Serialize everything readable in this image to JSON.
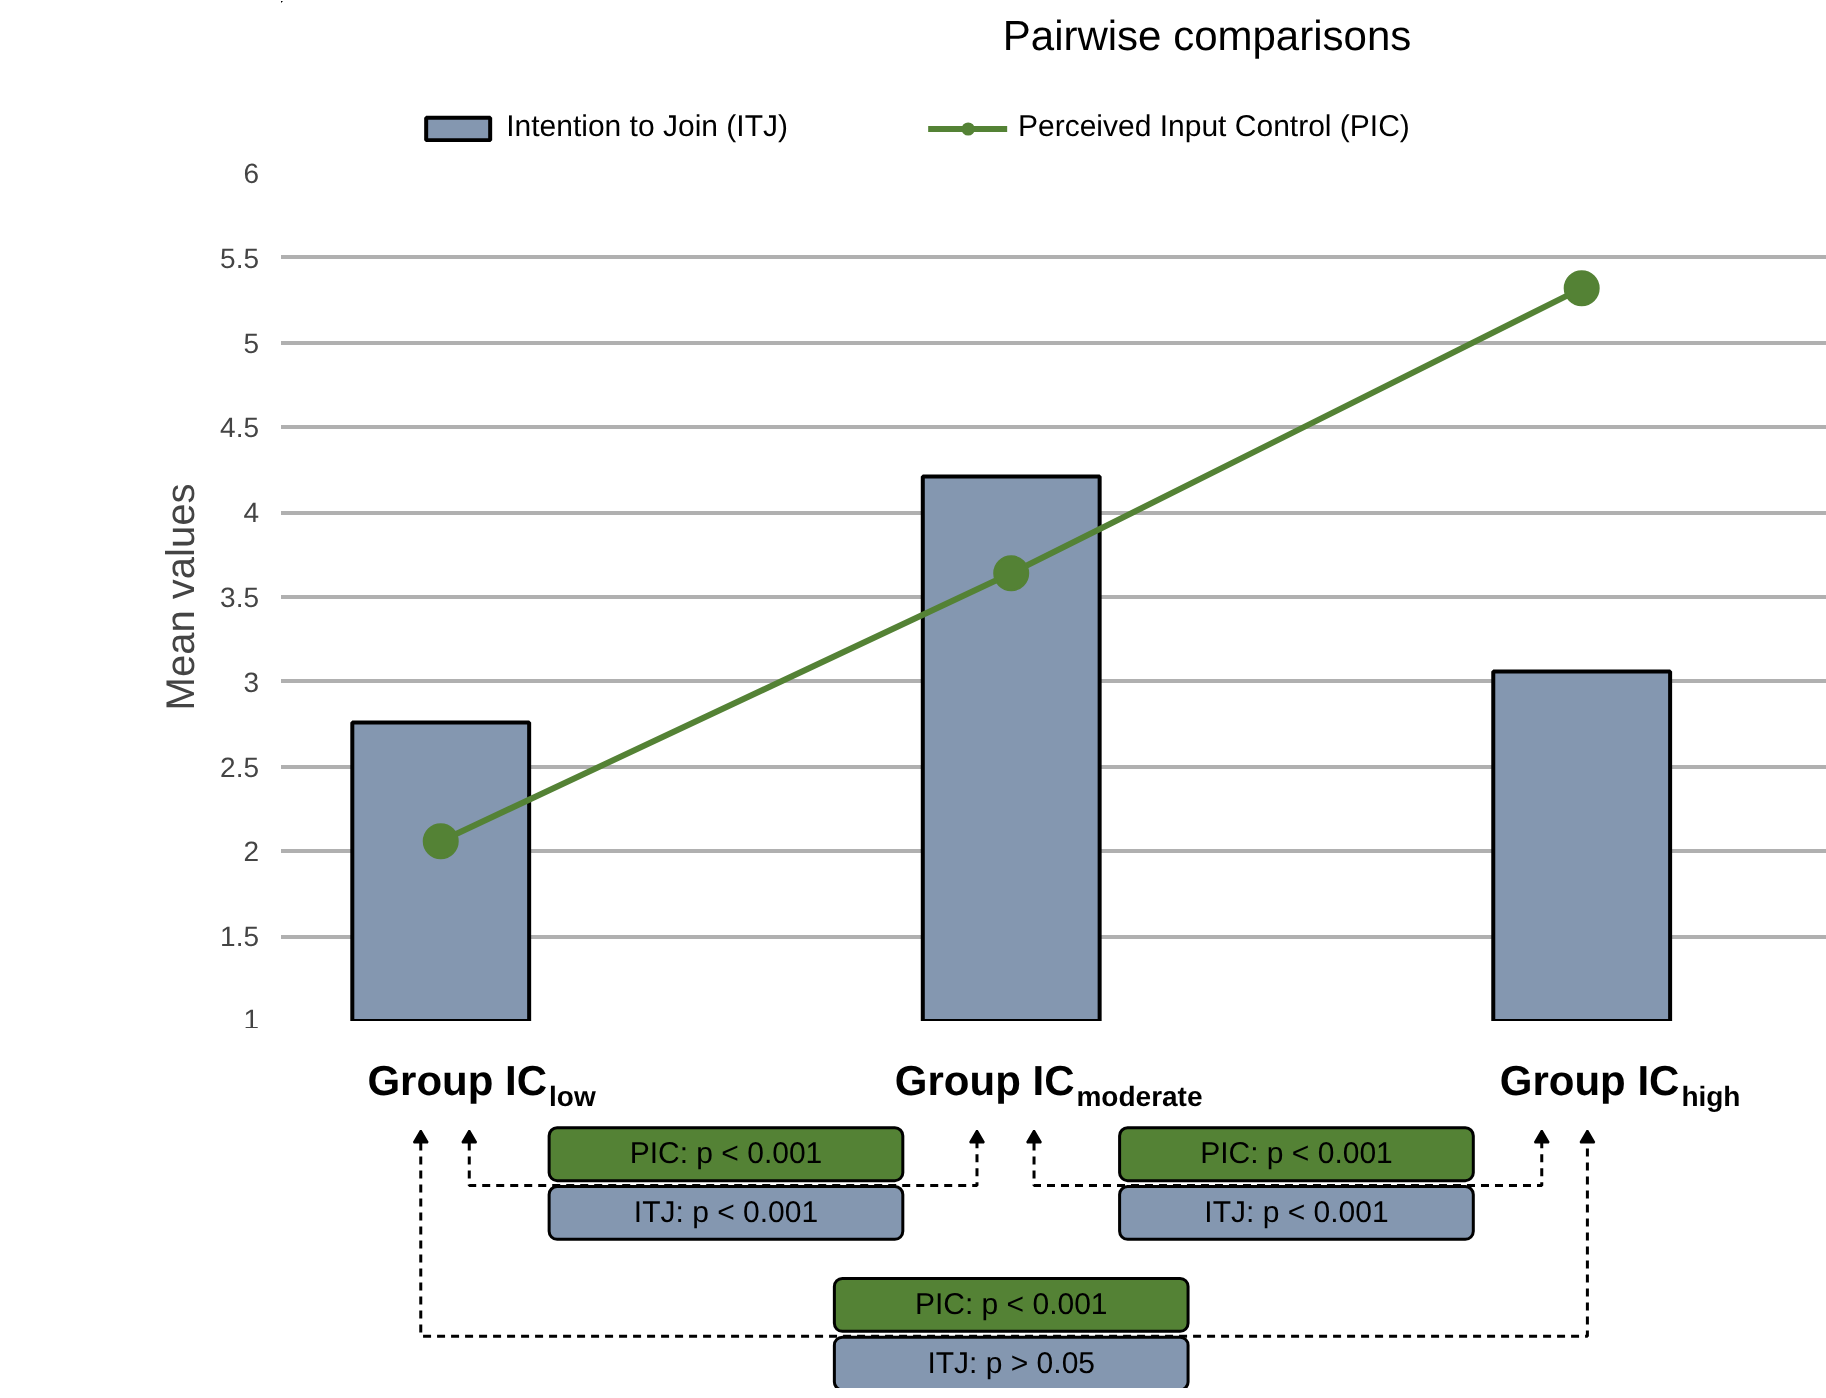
{
  "chart_data": {
    "type": "bar",
    "title": "Pairwise comparisons",
    "ylabel": "Mean values",
    "categories": [
      "Group IC$_{low}$",
      "Group IC$_{moderate}$",
      "Group IC$_{high}$"
    ],
    "series": [
      {
        "name": "Intention to Join (ITJ)",
        "color": "#8497b0",
        "values": [
          2.76,
          4.21,
          3.06
        ]
      },
      {
        "name": "Perceived Input Control (PIC)",
        "type": "line",
        "color": "#548235",
        "marker": "circle",
        "values": [
          2.06,
          3.64,
          5.32
        ]
      }
    ],
    "ylim": [
      1,
      6
    ],
    "yticks": [
      1,
      1.5,
      2,
      2.5,
      3,
      3.5,
      4,
      4.5,
      5,
      5.5,
      6
    ],
    "grid": "y",
    "legend": "top",
    "annotations": [
      "PIC: p < 0.001",
      "ITJ: p < 0.001",
      "PIC: p < 0.001",
      "ITJ: p < 0.001",
      "PIC: p < 0.001",
      "ITJ: p > 0.05"
    ]
  }
}
